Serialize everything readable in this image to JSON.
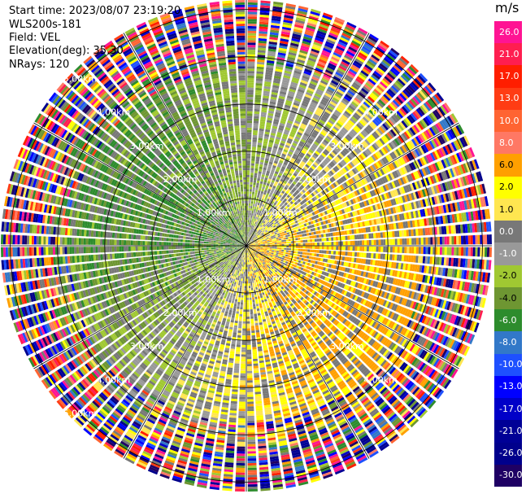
{
  "header": {
    "start_time": "Start time: 2023/08/07 23:19:20",
    "instrument": "WLS200s-181",
    "field": "Field: VEL",
    "elevation": "Elevation(deg): 35.30",
    "nrays": "NRays: 120"
  },
  "chart_data": {
    "type": "heatmap",
    "projection": "polar-ppi",
    "field": "VEL",
    "elevation_deg": 35.3,
    "nrays": 120,
    "range_rings_km": [
      1.0,
      2.0,
      3.0,
      4.0,
      5.0
    ],
    "range_labels": [
      {
        "ring": 1,
        "quadrant": "ne",
        "text": "1.00km"
      },
      {
        "ring": 1,
        "quadrant": "nw",
        "text": "1.00km"
      },
      {
        "ring": 1,
        "quadrant": "sw",
        "text": "1.00km"
      },
      {
        "ring": 1,
        "quadrant": "se",
        "text": "1.00km"
      },
      {
        "ring": 2,
        "quadrant": "ne",
        "text": "2.00km"
      },
      {
        "ring": 2,
        "quadrant": "nw",
        "text": "2.00km"
      },
      {
        "ring": 2,
        "quadrant": "sw",
        "text": "2.00km"
      },
      {
        "ring": 2,
        "quadrant": "se",
        "text": "2.00km"
      },
      {
        "ring": 3,
        "quadrant": "ne",
        "text": "3.00km"
      },
      {
        "ring": 3,
        "quadrant": "nw",
        "text": "3.00km"
      },
      {
        "ring": 3,
        "quadrant": "sw",
        "text": "3.00km"
      },
      {
        "ring": 3,
        "quadrant": "se",
        "text": "3.00km"
      },
      {
        "ring": 4,
        "quadrant": "ne",
        "text": "4.00km"
      },
      {
        "ring": 4,
        "quadrant": "nw",
        "text": "4.00km"
      },
      {
        "ring": 4,
        "quadrant": "sw",
        "text": "4.00km"
      },
      {
        "ring": 4,
        "quadrant": "se",
        "text": "4.00km"
      },
      {
        "ring": 5,
        "quadrant": "nw",
        "text": "5.00km"
      },
      {
        "ring": 5,
        "quadrant": "sw",
        "text": "5.00km"
      }
    ],
    "colorbar": {
      "unit": "m/s",
      "ticks": [
        "26.0",
        "21.0",
        "17.0",
        "13.0",
        "10.0",
        "8.0",
        "6.0",
        "2.0",
        "1.0",
        "0.0",
        "-1.0",
        "-2.0",
        "-4.0",
        "-6.0",
        "-8.0",
        "-10.0",
        "-13.0",
        "-17.0",
        "-21.0",
        "-26.0",
        "-30.0"
      ],
      "colors": [
        "#ff1493",
        "#ff1e50",
        "#ff1e00",
        "#ff3c14",
        "#ff6432",
        "#ff7864",
        "#ffa000",
        "#ffff00",
        "#ffe650",
        "#787878",
        "#999999",
        "#a0c832",
        "#6e9632",
        "#2d8c2d",
        "#3278c8",
        "#1e50ff",
        "#0000ff",
        "#0000c8",
        "#000096",
        "#00008c",
        "#1e0064"
      ]
    }
  }
}
